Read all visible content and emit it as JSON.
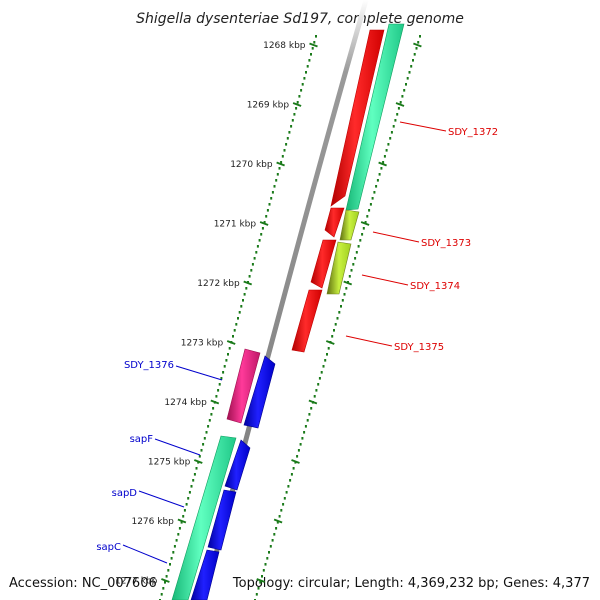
{
  "title": "Shigella dysenteriae Sd197, complete genome",
  "accession": "Accession: NC_007606",
  "topology": "Topology: circular; Length: 4,369,232 bp; Genes: 4,377",
  "colors": {
    "backbone": "#808080",
    "tick": "#1a7a1a",
    "cds": "#ff0000",
    "rna": "#2ee8a0",
    "misc": "#b0e030",
    "gene_alt": "#0000ee",
    "pseudo": "#e0207a",
    "label_red": "#dd0000",
    "label_blue": "#0000cc"
  },
  "ticks": [
    {
      "label": "1268 kbp"
    },
    {
      "label": "1269 kbp"
    },
    {
      "label": "1270 kbp"
    },
    {
      "label": "1271 kbp"
    },
    {
      "label": "1272 kbp"
    },
    {
      "label": "1273 kbp"
    },
    {
      "label": "1274 kbp"
    },
    {
      "label": "1275 kbp"
    },
    {
      "label": "1276 kbp"
    },
    {
      "label": "1277 kbp"
    }
  ],
  "gene_labels": [
    {
      "text": "SDY_1372",
      "color": "red"
    },
    {
      "text": "SDY_1373",
      "color": "red"
    },
    {
      "text": "SDY_1374",
      "color": "red"
    },
    {
      "text": "SDY_1375",
      "color": "red"
    },
    {
      "text": "SDY_1376",
      "color": "blue"
    },
    {
      "text": "sapF",
      "color": "blue"
    },
    {
      "text": "sapD",
      "color": "blue"
    },
    {
      "text": "sapC",
      "color": "blue"
    }
  ]
}
